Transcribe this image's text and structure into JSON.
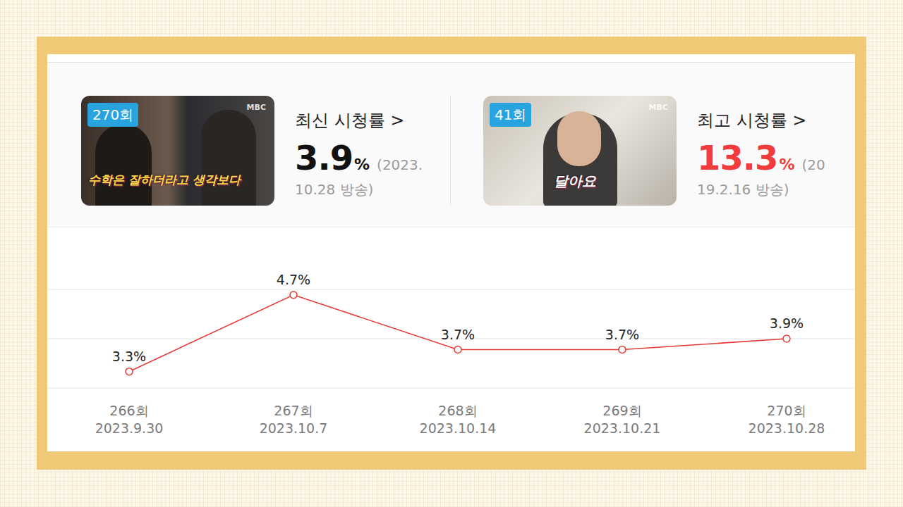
{
  "cards": [
    {
      "badge": "270회",
      "image_logo": "MBC",
      "image_caption": "수학은 잘하더라고 생각보다",
      "title": "최신 시청률 >",
      "value": 3.9,
      "unit": "%",
      "date_lines": [
        "(2023.",
        "10.28 방송)"
      ],
      "color": "#111111"
    },
    {
      "badge": "41회",
      "image_logo": "MBC",
      "image_caption": "달아요",
      "title": "최고 시청률 >",
      "value": 13.3,
      "unit": "%",
      "date_lines": [
        "(20",
        "19.2.16 방송)"
      ],
      "color": "#f03c3c"
    }
  ],
  "chart_data": {
    "type": "line",
    "categories": [
      "266회\n2023.9.30",
      "267회\n2023.10.7",
      "268회\n2023.10.14",
      "269회\n2023.10.21",
      "270회\n2023.10.28"
    ],
    "values": [
      3.3,
      4.7,
      3.7,
      3.7,
      3.9
    ],
    "value_labels": [
      "3.3%",
      "4.7%",
      "3.7%",
      "3.7%",
      "3.9%"
    ],
    "color": "#e53935",
    "marker": "circle",
    "ylim": [
      3.0,
      4.8
    ],
    "yticks": [
      3.0,
      3.9,
      4.8
    ],
    "grid": true,
    "tick_labels": false,
    "data_labels": true
  }
}
